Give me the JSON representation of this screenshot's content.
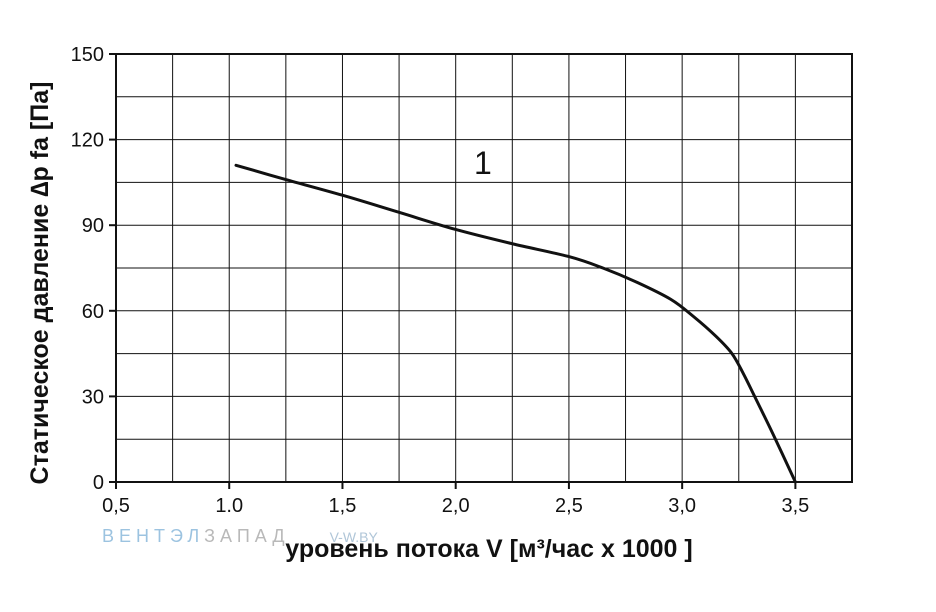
{
  "chart_data": {
    "type": "line",
    "title": "",
    "xlabel": "уровень потока  V [м³/час x 1000 ]",
    "ylabel": "Статическое давление  ∆p fa [Па]",
    "xlim": [
      0.5,
      3.75
    ],
    "ylim": [
      0,
      150
    ],
    "x_ticks": [
      0.5,
      1.0,
      1.5,
      2.0,
      2.5,
      3.0,
      3.5
    ],
    "x_tick_labels": [
      "0,5",
      "1.0",
      "1,5",
      "2,0",
      "2,5",
      "3,0",
      "3,5"
    ],
    "y_ticks": [
      0,
      30,
      60,
      90,
      120,
      150
    ],
    "y_tick_labels": [
      "0",
      "30",
      "60",
      "90",
      "120",
      "150"
    ],
    "x_grid_step": 0.25,
    "y_grid_step": 15,
    "grid": true,
    "legend": "none",
    "series": [
      {
        "curve_label": "1",
        "color": "#111111",
        "x": [
          1.03,
          1.25,
          1.5,
          1.75,
          2.0,
          2.25,
          2.5,
          2.65,
          2.8,
          2.95,
          3.05,
          3.15,
          3.22,
          3.27,
          3.32,
          3.4,
          3.5
        ],
        "y": [
          111,
          106,
          100.5,
          94.5,
          88.5,
          83.5,
          79,
          75,
          70,
          64,
          58,
          51,
          45,
          38,
          30,
          17,
          0
        ]
      }
    ],
    "annotations": [
      {
        "text": "1",
        "x": 2.12,
        "y": 108
      }
    ]
  },
  "watermark": {
    "part1": "ВЕНТЭЛ",
    "part2": "ЗАПАД",
    "part3": "V-W.BY"
  }
}
